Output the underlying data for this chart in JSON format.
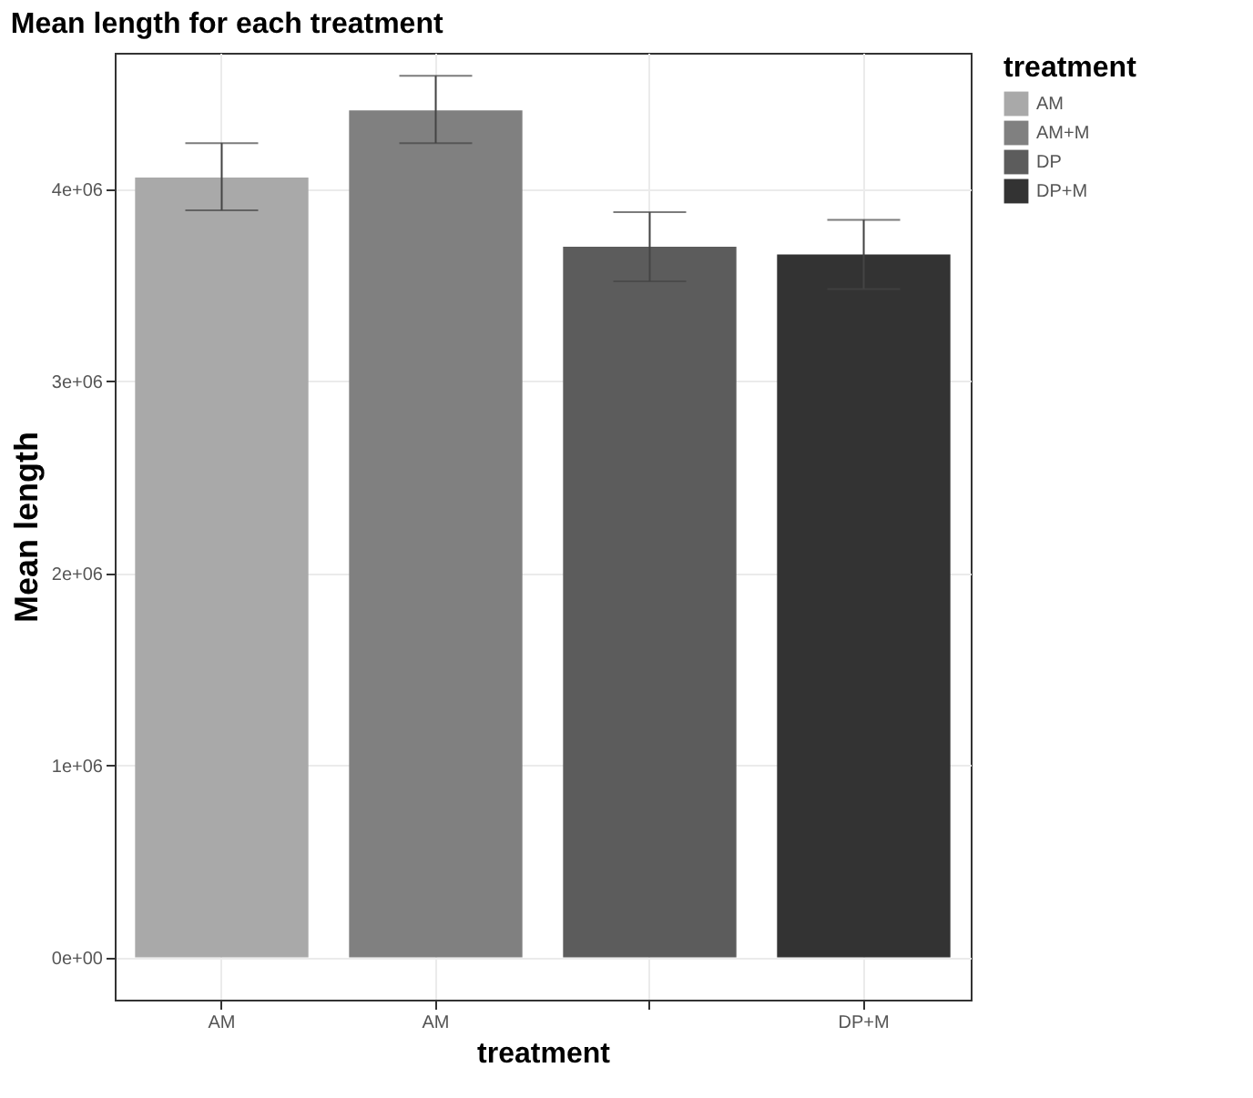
{
  "chart_data": {
    "type": "bar",
    "title": "Mean length for each treatment",
    "xlabel": "treatment",
    "ylabel": "Mean length",
    "legend_title": "treatment",
    "categories": [
      "AM",
      "AM",
      null,
      "DP+M"
    ],
    "series": [
      {
        "name": "AM",
        "color": "#a9a9a9",
        "values": [
          4060000,
          null,
          null,
          null
        ],
        "errors": [
          [
            3890000,
            4240000
          ],
          null,
          null,
          null
        ]
      },
      {
        "name": "AM+M",
        "color": "#808080",
        "values": [
          null,
          4410000,
          null,
          null
        ],
        "errors": [
          null,
          [
            4240000,
            4590000
          ],
          null,
          null
        ]
      },
      {
        "name": "DP",
        "color": "#5c5c5c",
        "values": [
          null,
          null,
          3700000,
          null
        ],
        "errors": [
          null,
          null,
          [
            3520000,
            3880000
          ],
          null
        ]
      },
      {
        "name": "DP+M",
        "color": "#333333",
        "values": [
          null,
          null,
          null,
          3660000
        ],
        "errors": [
          null,
          null,
          null,
          [
            3480000,
            3840000
          ]
        ]
      }
    ],
    "ylim": [
      -220000,
      4710000
    ],
    "yticks": [
      {
        "value": 0,
        "label": "0e+00"
      },
      {
        "value": 1000000,
        "label": "1e+06"
      },
      {
        "value": 2000000,
        "label": "2e+06"
      },
      {
        "value": 3000000,
        "label": "3e+06"
      },
      {
        "value": 4000000,
        "label": "4e+06"
      }
    ],
    "grid": true,
    "legend": "right"
  }
}
